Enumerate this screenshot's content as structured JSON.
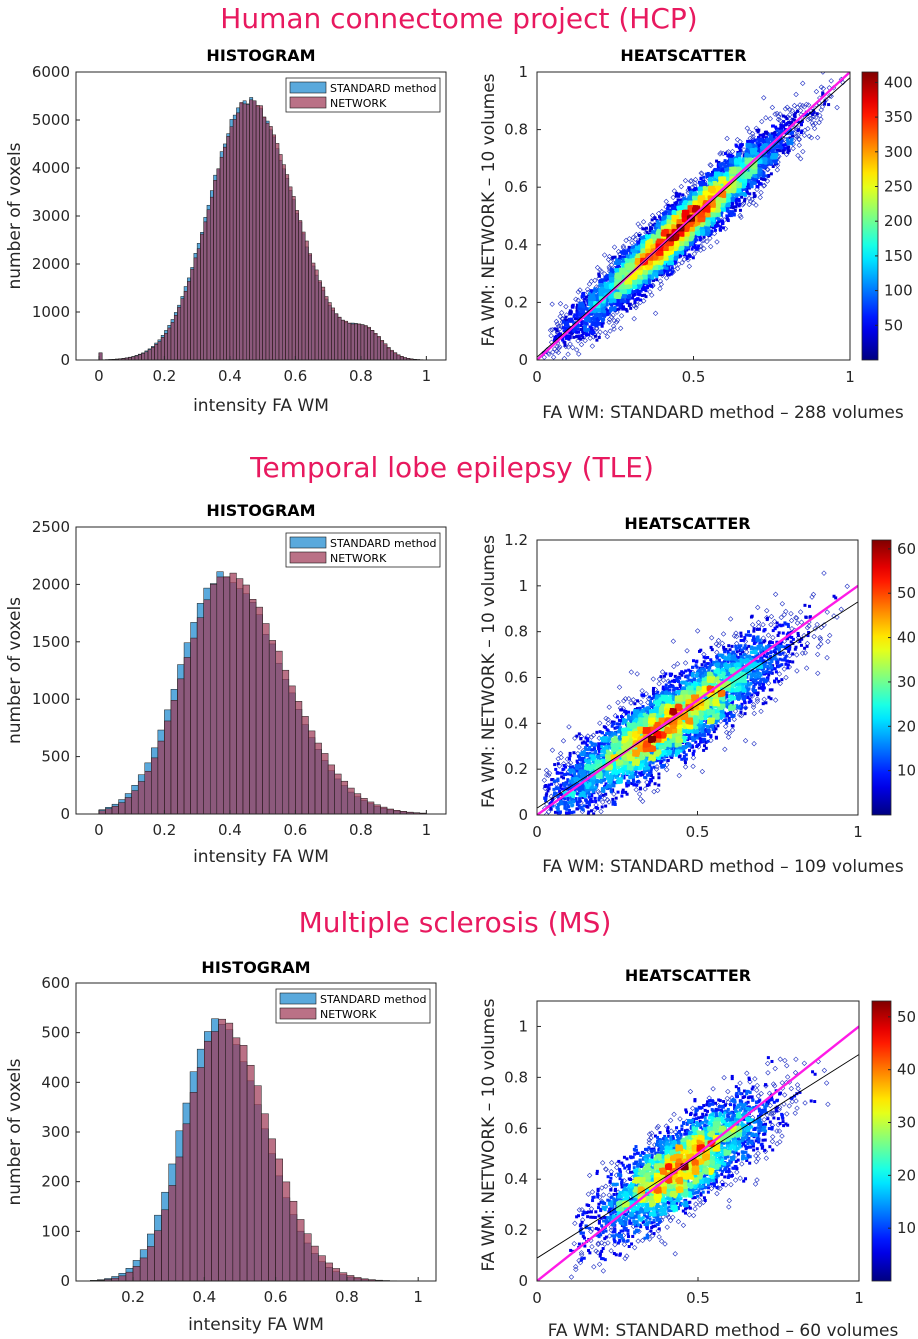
{
  "colors": {
    "title": "#e8195f",
    "standard_bar": "#5aa9dc",
    "network_bar": "#a03a58",
    "identity_line": "#ff1ae6",
    "fit_line": "#000000"
  },
  "chart_data": [
    {
      "id": "hcp",
      "row_title": "Human connectome project (HCP)",
      "histogram": {
        "type": "bar",
        "title": "HISTOGRAM",
        "xlabel": "intensity FA WM",
        "ylabel": "number of voxels",
        "xlim": [
          -0.07,
          1.06
        ],
        "ylim": [
          0,
          6000
        ],
        "xticks": [
          0,
          0.2,
          0.4,
          0.6,
          0.8,
          1
        ],
        "xtick_labels": [
          "0",
          "0.2",
          "0.4",
          "0.6",
          "0.8",
          "1"
        ],
        "yticks": [
          0,
          1000,
          2000,
          3000,
          4000,
          5000,
          6000
        ],
        "ytick_labels": [
          "0",
          "1000",
          "2000",
          "3000",
          "4000",
          "5000",
          "6000"
        ],
        "legend": [
          "STANDARD method",
          "NETWORK"
        ],
        "legend_position": "top-right",
        "dist": {
          "range": [
            0.0,
            0.99
          ],
          "bins": 99,
          "peak": 5400,
          "mu": 0.46,
          "sl": 0.12,
          "sr": 0.14,
          "shift": -0.004,
          "bumps": [
            {
              "mu": 0.82,
              "s": 0.05,
              "a": 500
            }
          ],
          "zero_spike": 150
        }
      },
      "heatscatter": {
        "type": "scatter",
        "title": "HEATSCATTER",
        "xlabel": "FA WM: STANDARD method – 288 volumes",
        "ylabel": "FA WM: NETWORK – 10 volumes",
        "xlim": [
          0,
          1
        ],
        "ylim": [
          0,
          1
        ],
        "xticks": [
          0,
          0.5,
          1
        ],
        "xtick_labels": [
          "0",
          "0.5",
          "1"
        ],
        "yticks": [
          0,
          0.2,
          0.4,
          0.6,
          0.8,
          1
        ],
        "ytick_labels": [
          "0",
          "0.2",
          "0.4",
          "0.6",
          "0.8",
          "1"
        ],
        "colorbar": {
          "min": 0,
          "max": 415,
          "ticks": [
            50,
            100,
            150,
            200,
            250,
            300,
            350,
            400
          ],
          "tick_labels": [
            "50",
            "100",
            "150",
            "200",
            "250",
            "300",
            "350",
            "400"
          ]
        },
        "identity_line": {
          "slope": 1,
          "intercept": 0
        },
        "fit_line": {
          "slope": 0.97,
          "intercept": 0.01
        },
        "cloud": {
          "n": 9000,
          "mu": 0.46,
          "sx": 0.16,
          "noise": 0.04,
          "xmin": 0.02,
          "xmax": 0.98
        }
      }
    },
    {
      "id": "tle",
      "row_title": "Temporal lobe epilepsy (TLE)",
      "histogram": {
        "type": "bar",
        "title": "HISTOGRAM",
        "xlabel": "intensity FA WM",
        "ylabel": "number of voxels",
        "xlim": [
          -0.07,
          1.06
        ],
        "ylim": [
          0,
          2500
        ],
        "xticks": [
          0,
          0.2,
          0.4,
          0.6,
          0.8,
          1
        ],
        "xtick_labels": [
          "0",
          "0.2",
          "0.4",
          "0.6",
          "0.8",
          "1"
        ],
        "yticks": [
          0,
          500,
          1000,
          1500,
          2000,
          2500
        ],
        "ytick_labels": [
          "0",
          "500",
          "1000",
          "1500",
          "2000",
          "2500"
        ],
        "legend": [
          "STANDARD method",
          "NETWORK"
        ],
        "legend_position": "top-right",
        "dist": {
          "range": [
            0.0,
            1.0
          ],
          "bins": 50,
          "peak": 2080,
          "mu": 0.39,
          "sl": 0.13,
          "sr": 0.18,
          "shift": -0.012,
          "bumps": [],
          "zero_spike": 0
        }
      },
      "heatscatter": {
        "type": "scatter",
        "title": "HEATSCATTER",
        "xlabel": "FA WM: STANDARD method – 109 volumes",
        "ylabel": "FA WM: NETWORK – 10 volumes",
        "xlim": [
          0,
          1
        ],
        "ylim": [
          0,
          1.2
        ],
        "xticks": [
          0,
          0.5,
          1
        ],
        "xtick_labels": [
          "0",
          "0.5",
          "1"
        ],
        "yticks": [
          0,
          0.2,
          0.4,
          0.6,
          0.8,
          1,
          1.2
        ],
        "ytick_labels": [
          "0",
          "0.2",
          "0.4",
          "0.6",
          "0.8",
          "1",
          "1.2"
        ],
        "colorbar": {
          "min": 0,
          "max": 62,
          "ticks": [
            10,
            20,
            30,
            40,
            50,
            60
          ],
          "tick_labels": [
            "10",
            "20",
            "30",
            "40",
            "50",
            "60"
          ]
        },
        "identity_line": {
          "slope": 1,
          "intercept": 0
        },
        "fit_line": {
          "slope": 0.9,
          "intercept": 0.03
        },
        "cloud": {
          "n": 6500,
          "mu": 0.41,
          "sx": 0.17,
          "noise": 0.07,
          "xmin": 0.02,
          "xmax": 0.98
        }
      }
    },
    {
      "id": "ms",
      "row_title": "Multiple sclerosis (MS)",
      "histogram": {
        "type": "bar",
        "title": "HISTOGRAM",
        "xlabel": "intensity FA WM",
        "ylabel": "number of voxels",
        "xlim": [
          0.04,
          1.05
        ],
        "ylim": [
          0,
          600
        ],
        "xticks": [
          0.2,
          0.4,
          0.6,
          0.8,
          1
        ],
        "xtick_labels": [
          "0.2",
          "0.4",
          "0.6",
          "0.8",
          "1"
        ],
        "yticks": [
          0,
          100,
          200,
          300,
          400,
          500,
          600
        ],
        "ytick_labels": [
          "0",
          "100",
          "200",
          "300",
          "400",
          "500",
          "600"
        ],
        "legend": [
          "STANDARD method",
          "NETWORK"
        ],
        "legend_position": "top-right",
        "dist": {
          "range": [
            0.08,
            1.02
          ],
          "bins": 47,
          "peak": 520,
          "mu": 0.45,
          "sl": 0.1,
          "sr": 0.13,
          "shift": -0.015,
          "bumps": [],
          "zero_spike": 0
        }
      },
      "heatscatter": {
        "type": "scatter",
        "title": "HEATSCATTER",
        "xlabel": "FA WM: STANDARD method – 60 volumes",
        "ylabel": "FA WM: NETWORK – 10 volumes",
        "xlim": [
          0,
          1
        ],
        "ylim": [
          0,
          1.1
        ],
        "xticks": [
          0,
          0.5,
          1
        ],
        "xtick_labels": [
          "0",
          "0.5",
          "1"
        ],
        "yticks": [
          0,
          0.2,
          0.4,
          0.6,
          0.8,
          1
        ],
        "ytick_labels": [
          "0",
          "0.2",
          "0.4",
          "0.6",
          "0.8",
          "1"
        ],
        "colorbar": {
          "min": 0,
          "max": 53,
          "ticks": [
            10,
            20,
            30,
            40,
            50
          ],
          "tick_labels": [
            "10",
            "20",
            "30",
            "40",
            "50"
          ]
        },
        "identity_line": {
          "slope": 1,
          "intercept": 0
        },
        "fit_line": {
          "slope": 0.8,
          "intercept": 0.09
        },
        "cloud": {
          "n": 4500,
          "mu": 0.45,
          "sx": 0.13,
          "noise": 0.07,
          "xmin": 0.1,
          "xmax": 0.98
        }
      }
    }
  ]
}
